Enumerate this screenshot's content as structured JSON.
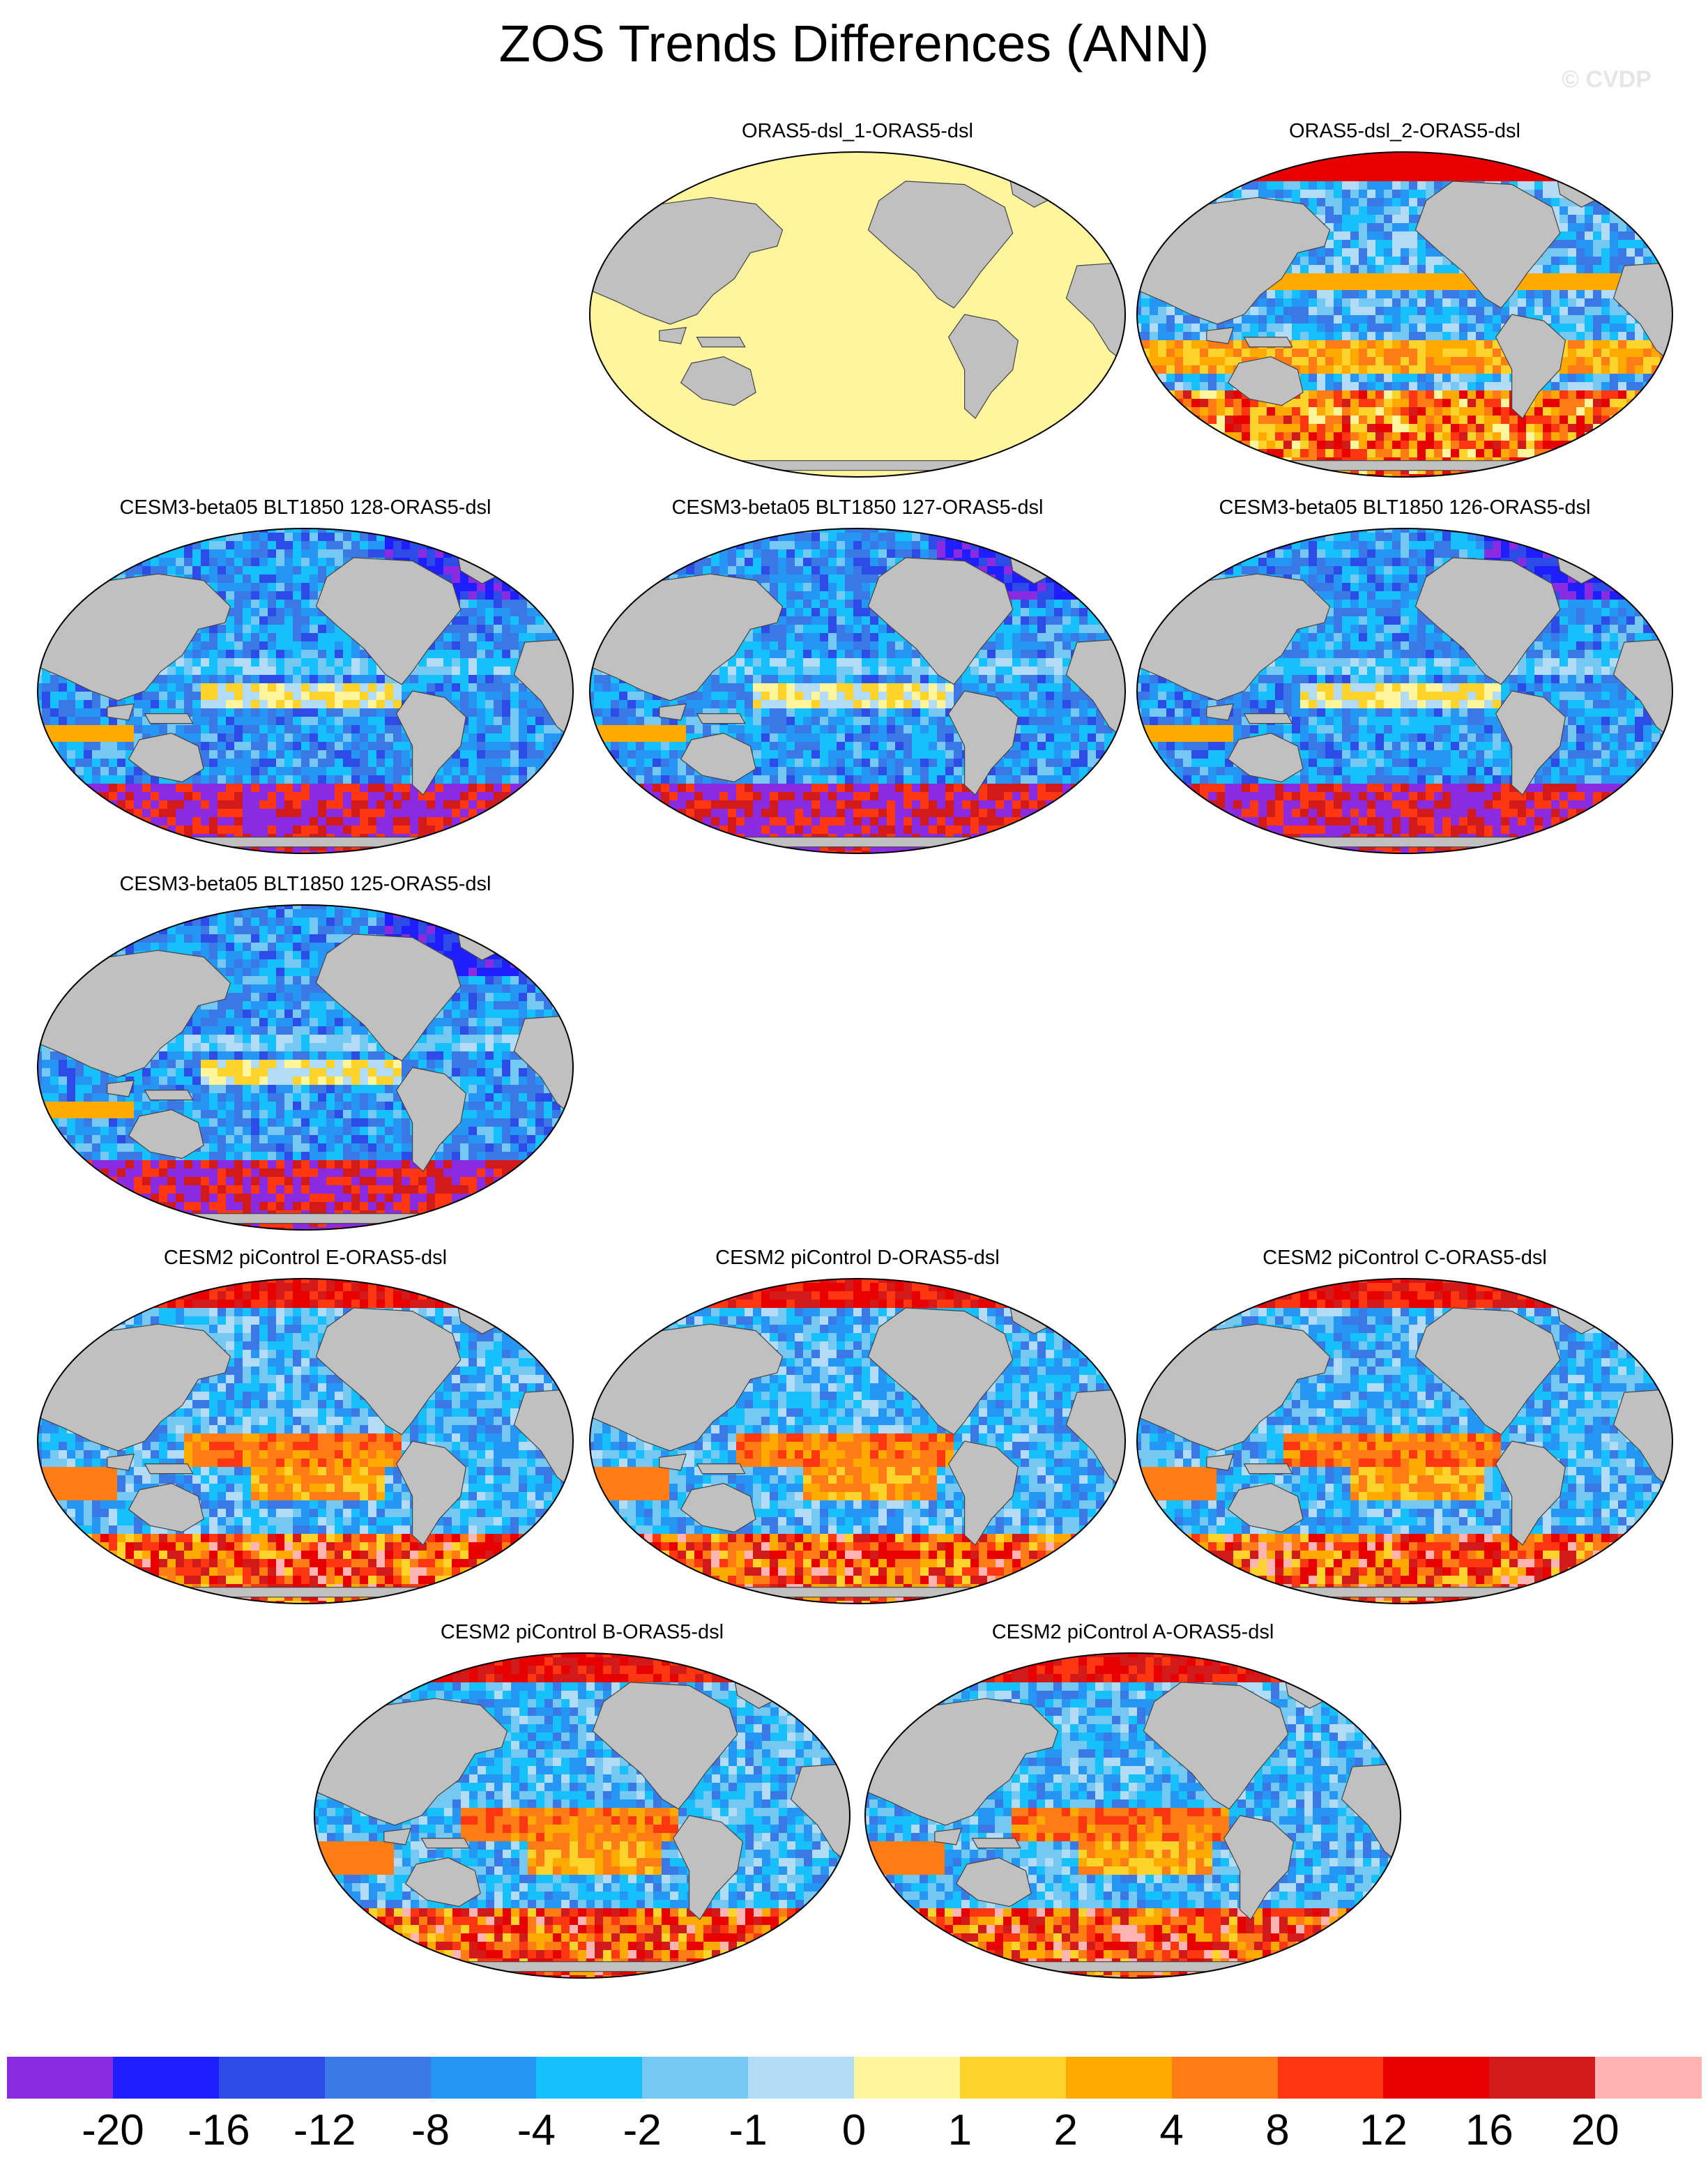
{
  "title": "ZOS Trends Differences (ANN)",
  "watermark": "© CVDP",
  "panels": [
    {
      "label": "ORAS5-dsl_1-ORAS5-dsl",
      "pattern": "uniform"
    },
    {
      "label": "ORAS5-dsl_2-ORAS5-dsl",
      "pattern": "obs"
    },
    {
      "label": "CESM3-beta05 BLT1850 128-ORAS5-dsl",
      "pattern": "cesm3"
    },
    {
      "label": "CESM3-beta05 BLT1850 127-ORAS5-dsl",
      "pattern": "cesm3"
    },
    {
      "label": "CESM3-beta05 BLT1850 126-ORAS5-dsl",
      "pattern": "cesm3"
    },
    {
      "label": "CESM3-beta05 BLT1850 125-ORAS5-dsl",
      "pattern": "cesm3"
    },
    {
      "label": "CESM2 piControl E-ORAS5-dsl",
      "pattern": "cesm2"
    },
    {
      "label": "CESM2 piControl D-ORAS5-dsl",
      "pattern": "cesm2"
    },
    {
      "label": "CESM2 piControl C-ORAS5-dsl",
      "pattern": "cesm2"
    },
    {
      "label": "CESM2 piControl B-ORAS5-dsl",
      "pattern": "cesm2"
    },
    {
      "label": "CESM2 piControl A-ORAS5-dsl",
      "pattern": "cesm2"
    }
  ],
  "colorbar": {
    "colors": [
      "#8a2be2",
      "#1e1eff",
      "#2d4be6",
      "#3a78e6",
      "#2696f5",
      "#16c0fa",
      "#74c8f2",
      "#b2dcf5",
      "#fff59d",
      "#ffd42a",
      "#ffaa00",
      "#ff7d14",
      "#ff3710",
      "#e60000",
      "#d21a1a",
      "#ffb4b4"
    ],
    "labels": [
      "-20",
      "-16",
      "-12",
      "-8",
      "-4",
      "-2",
      "-1",
      "0",
      "1",
      "2",
      "4",
      "8",
      "12",
      "16",
      "20"
    ]
  },
  "land_color": "#c0c0c0",
  "uniform_color": "#fff59d"
}
